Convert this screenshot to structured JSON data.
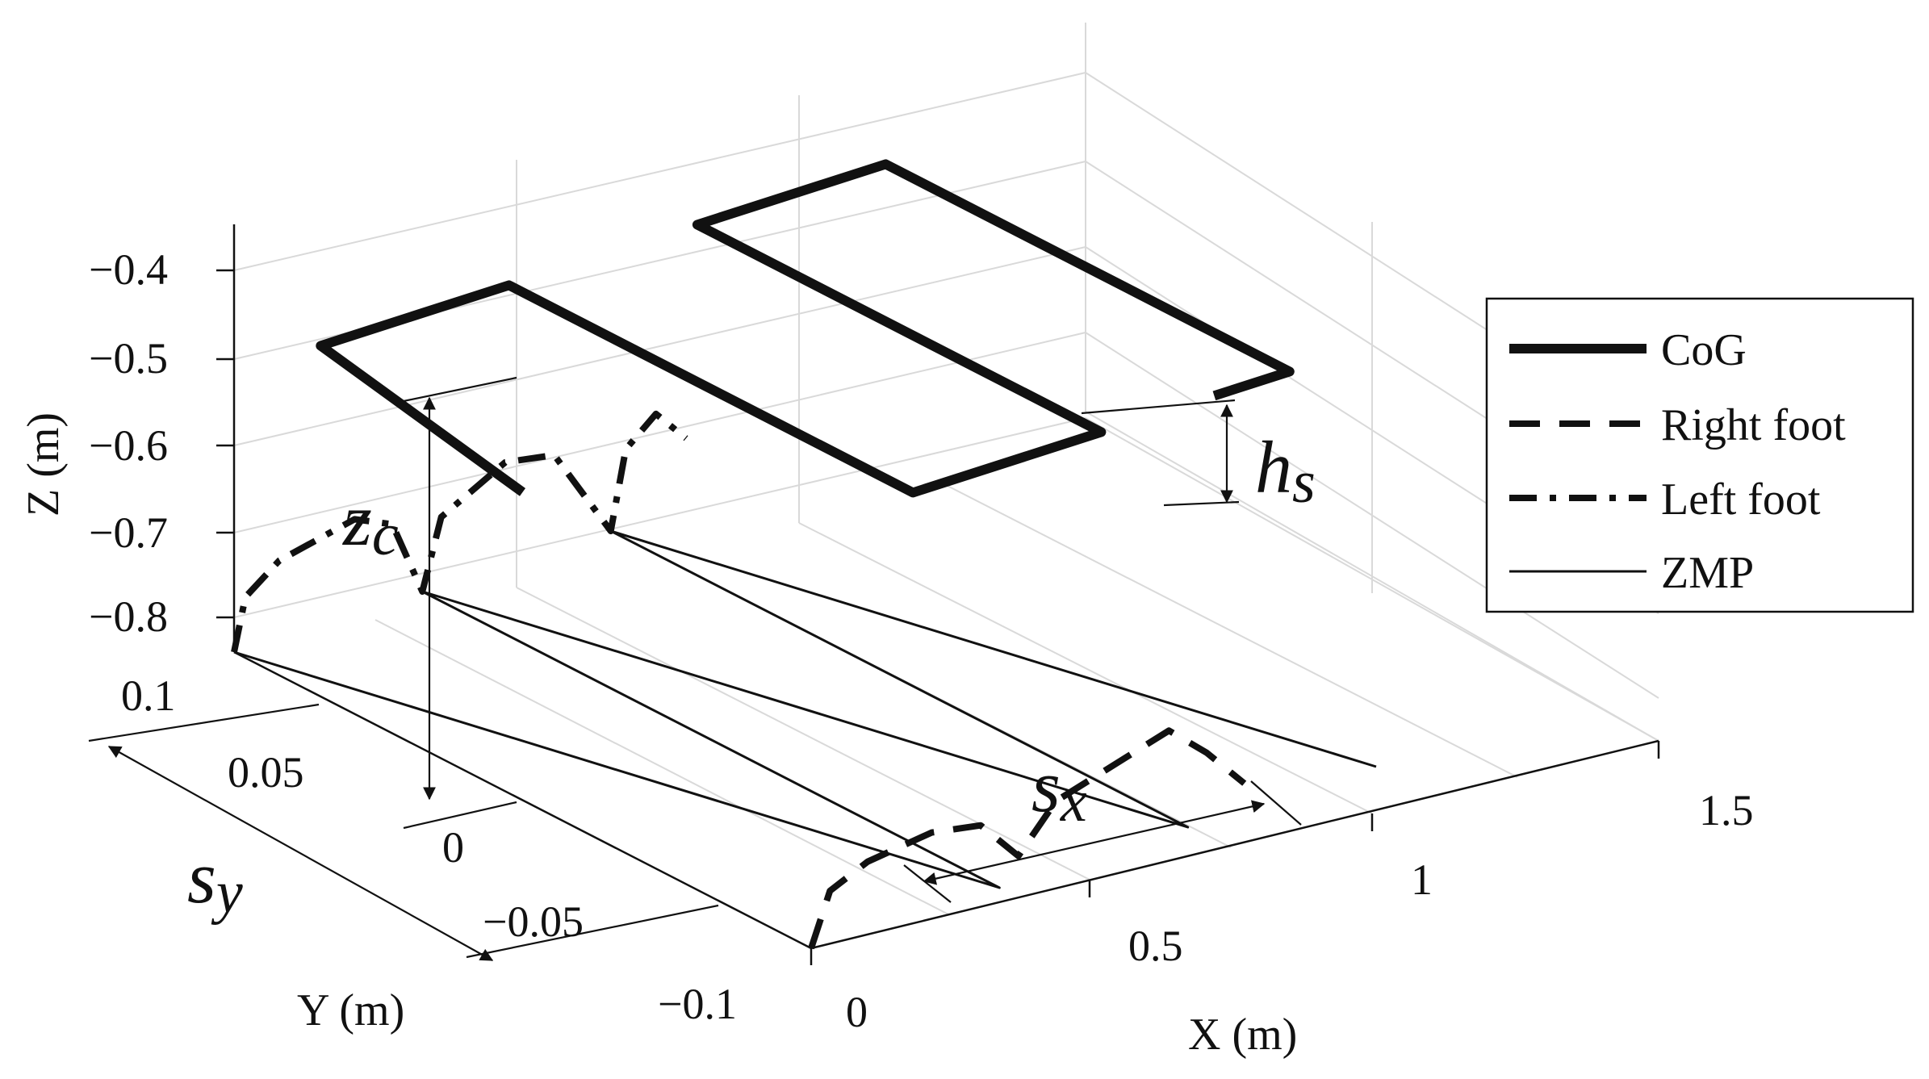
{
  "chart_data": {
    "type": "line",
    "projection": "3d",
    "title": "",
    "xlabel": "X (m)",
    "ylabel": "Y (m)",
    "zlabel": "Z (m)",
    "xlim": [
      0,
      1.5
    ],
    "ylim": [
      -0.1,
      0.1
    ],
    "zlim": [
      -0.85,
      -0.35
    ],
    "xticks": [
      "0",
      "0.5",
      "1",
      "1.5"
    ],
    "yticks": [
      "−0.1",
      "−0.05",
      "0",
      "0.05",
      "0.1"
    ],
    "zticks": [
      "−0.8",
      "−0.7",
      "−0.6",
      "−0.5",
      "−0.4"
    ],
    "grid": true,
    "legend_position": "right",
    "legend": [
      "CoG",
      "Right foot",
      "Left foot",
      "ZMP"
    ],
    "series": [
      {
        "name": "CoG",
        "style": "thick-solid",
        "points": [
          [
            0.0,
            0.0,
            -0.49
          ],
          [
            0.0,
            0.07,
            -0.44
          ],
          [
            0.5,
            0.07,
            -0.44
          ],
          [
            0.5,
            -0.07,
            -0.44
          ],
          [
            1.0,
            -0.07,
            -0.44
          ],
          [
            1.0,
            0.07,
            -0.44
          ],
          [
            1.5,
            0.07,
            -0.44
          ],
          [
            1.5,
            -0.07,
            -0.44
          ],
          [
            1.3,
            -0.07,
            -0.44
          ]
        ]
      },
      {
        "name": "Right foot",
        "style": "dashed",
        "points": [
          [
            0.0,
            -0.1,
            -0.85
          ],
          [
            0.05,
            -0.1,
            -0.79
          ],
          [
            0.15,
            -0.1,
            -0.77
          ],
          [
            0.32,
            -0.1,
            -0.76
          ],
          [
            0.45,
            -0.1,
            -0.77
          ],
          [
            0.55,
            -0.1,
            -0.82
          ],
          [
            0.65,
            -0.1,
            -0.77
          ],
          [
            0.8,
            -0.1,
            -0.75
          ],
          [
            0.95,
            -0.1,
            -0.73
          ],
          [
            1.05,
            -0.1,
            -0.77
          ],
          [
            1.15,
            -0.1,
            -0.82
          ]
        ]
      },
      {
        "name": "Left foot",
        "style": "dash-dot",
        "points": [
          [
            0.0,
            0.1,
            -0.85
          ],
          [
            0.03,
            0.1,
            -0.79
          ],
          [
            0.12,
            0.1,
            -0.76
          ],
          [
            0.32,
            0.1,
            -0.74
          ],
          [
            0.42,
            0.1,
            -0.76
          ],
          [
            0.5,
            0.1,
            -0.85
          ],
          [
            0.55,
            0.1,
            -0.77
          ],
          [
            0.72,
            0.1,
            -0.73
          ],
          [
            0.85,
            0.1,
            -0.74
          ],
          [
            1.0,
            0.1,
            -0.85
          ],
          [
            1.04,
            0.1,
            -0.76
          ],
          [
            1.12,
            0.1,
            -0.73
          ],
          [
            1.2,
            0.1,
            -0.77
          ]
        ]
      },
      {
        "name": "ZMP",
        "style": "thin-solid",
        "points": [
          [
            0.0,
            0.1,
            -0.85
          ],
          [
            0.5,
            -0.1,
            -0.85
          ],
          [
            0.5,
            0.1,
            -0.85
          ],
          [
            1.0,
            -0.1,
            -0.85
          ],
          [
            1.0,
            0.1,
            -0.85
          ],
          [
            1.5,
            -0.1,
            -0.85
          ]
        ]
      }
    ],
    "annotations": [
      {
        "label": "z",
        "subscript": "c",
        "meaning": "CoG height"
      },
      {
        "label": "h",
        "subscript": "s",
        "meaning": "swing height"
      },
      {
        "label": "s",
        "subscript": "x",
        "meaning": "step length"
      },
      {
        "label": "s",
        "subscript": "y",
        "meaning": "step width"
      }
    ]
  }
}
